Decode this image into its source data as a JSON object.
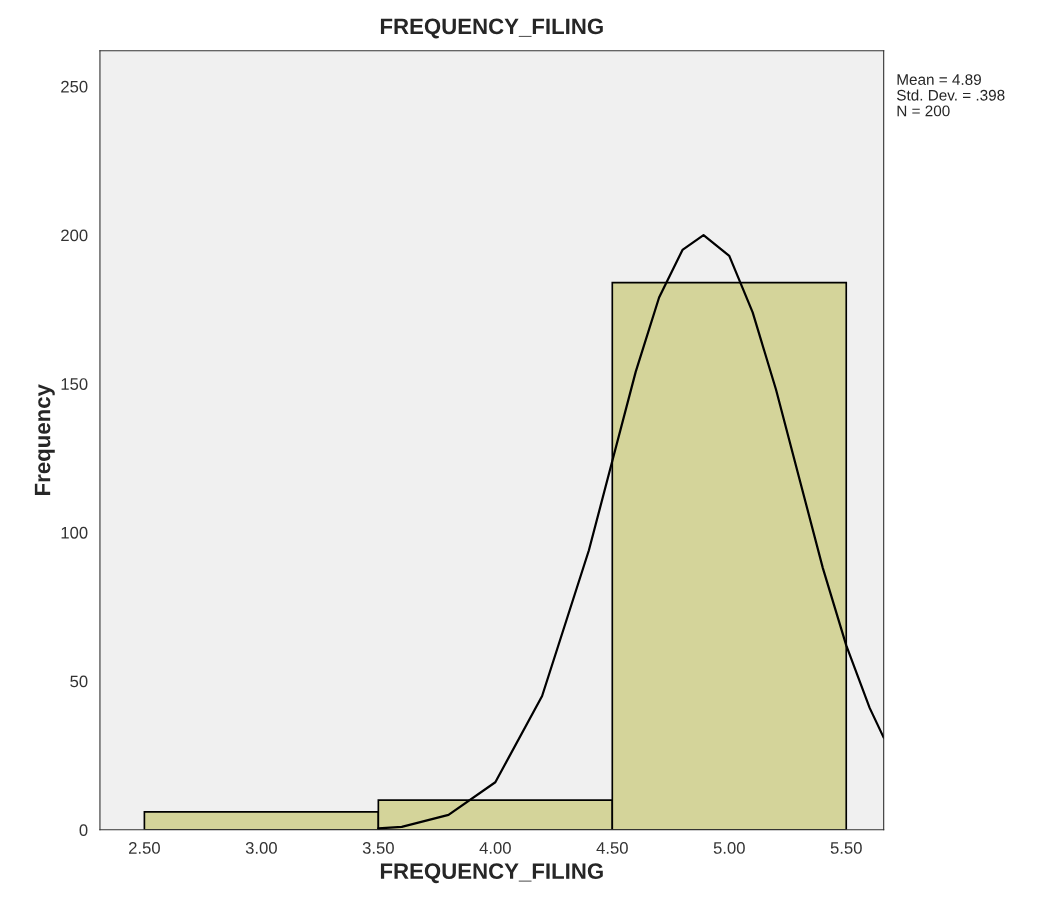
{
  "chart_data": {
    "type": "histogram",
    "title": "FREQUENCY_FILING",
    "xlabel": "FREQUENCY_FILING",
    "ylabel": "Frequency",
    "bins": [
      2.5,
      3.5,
      4.5,
      5.5
    ],
    "values": [
      6,
      10,
      184
    ],
    "color": "#d4d49a",
    "series": [
      {
        "type": "line",
        "color": "#000000",
        "x": [
          3.5,
          3.6,
          3.8,
          4.0,
          4.2,
          4.4,
          4.5,
          4.6,
          4.7,
          4.8,
          4.89,
          5.0,
          5.1,
          5.2,
          5.3,
          5.4,
          5.5,
          5.6,
          5.66
        ],
        "values": [
          0.5,
          1,
          5,
          16,
          45,
          94,
          124,
          154,
          179,
          195,
          200,
          193,
          174,
          148,
          118,
          88,
          62,
          41,
          31
        ]
      }
    ],
    "xlim": [
      2.31,
      5.66
    ],
    "ylim": [
      0,
      262
    ],
    "xticks": [
      {
        "value": 2.5,
        "label": "2.50"
      },
      {
        "value": 3.0,
        "label": "3.00"
      },
      {
        "value": 3.5,
        "label": "3.50"
      },
      {
        "value": 4.0,
        "label": "4.00"
      },
      {
        "value": 4.5,
        "label": "4.50"
      },
      {
        "value": 5.0,
        "label": "5.00"
      },
      {
        "value": 5.5,
        "label": "5.50"
      }
    ],
    "yticks": [
      0,
      50,
      100,
      150,
      200,
      250
    ],
    "grid": false,
    "annotations": [
      "Mean = 4.89",
      "Std. Dev. = .398",
      "N = 200"
    ]
  }
}
